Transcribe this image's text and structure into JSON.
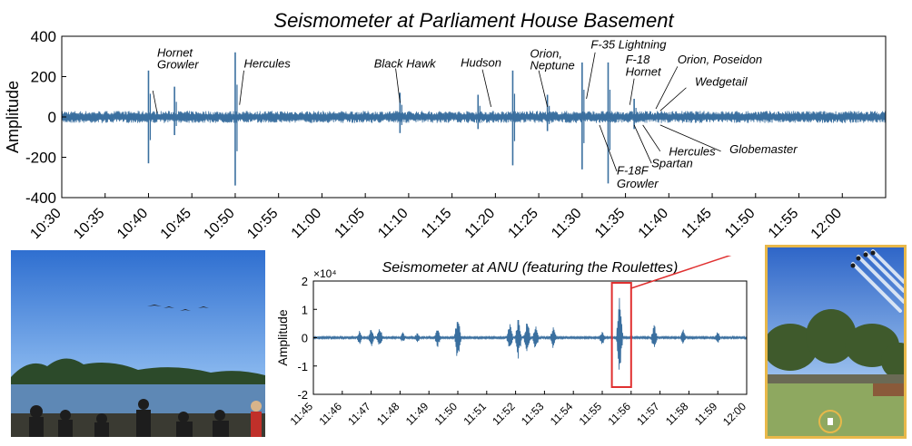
{
  "chart_data": [
    {
      "type": "line",
      "title": "Seismometer at Parliament House Basement",
      "ylabel": "Amplitude",
      "ylim": [
        -400,
        400
      ],
      "yticks": [
        400,
        200,
        0,
        -200,
        -400
      ],
      "xrange": [
        "10:30",
        "12:05"
      ],
      "xticks": [
        "10:30",
        "10:35",
        "10:40",
        "10:45",
        "10:50",
        "10:55",
        "11:00",
        "11:05",
        "11:10",
        "11:15",
        "11:20",
        "11:25",
        "11:30",
        "11:35",
        "11:40",
        "11:45",
        "11:50",
        "11:55",
        "12:00"
      ],
      "color": "#3a6f9f",
      "noise_amplitude": 30,
      "spikes": [
        {
          "t": "10:40",
          "up": 230,
          "down": -230
        },
        {
          "t": "10:43",
          "up": 150,
          "down": -90
        },
        {
          "t": "10:50",
          "up": 320,
          "down": -340
        },
        {
          "t": "11:09",
          "up": 120,
          "down": -80
        },
        {
          "t": "11:18",
          "up": 110,
          "down": -60
        },
        {
          "t": "11:22",
          "up": 230,
          "down": -240
        },
        {
          "t": "11:26",
          "up": 110,
          "down": -70
        },
        {
          "t": "11:30",
          "up": 270,
          "down": -260
        },
        {
          "t": "11:33",
          "up": 270,
          "down": -330
        },
        {
          "t": "11:36",
          "up": 90,
          "down": -60
        }
      ],
      "annotations": [
        {
          "text": "Hornet",
          "t": "10:41",
          "y": 300
        },
        {
          "text": "Growler",
          "t": "10:41",
          "y": 240
        },
        {
          "text": "Hercules",
          "t": "10:51",
          "y": 245
        },
        {
          "text": "Black Hawk",
          "t": "11:06",
          "y": 245
        },
        {
          "text": "Hudson",
          "t": "11:16",
          "y": 250
        },
        {
          "text": "Orion,",
          "t": "11:24",
          "y": 295
        },
        {
          "text": "Neptune",
          "t": "11:24",
          "y": 235
        },
        {
          "text": "F-35 Lightning",
          "t": "11:31",
          "y": 340
        },
        {
          "text": "F-18",
          "t": "11:35",
          "y": 265
        },
        {
          "text": "Hornet",
          "t": "11:35",
          "y": 205
        },
        {
          "text": "Orion, Poseidon",
          "t": "11:41",
          "y": 265
        },
        {
          "text": "Wedgetail",
          "t": "11:43",
          "y": 155
        },
        {
          "text": "Hercules",
          "t": "11:40",
          "y": -190
        },
        {
          "text": "Spartan",
          "t": "11:38",
          "y": -250
        },
        {
          "text": "Globemaster",
          "t": "11:47",
          "y": -180
        },
        {
          "text": "F-18F",
          "t": "11:34",
          "y": -285
        },
        {
          "text": "Growler",
          "t": "11:34",
          "y": -350
        }
      ]
    },
    {
      "type": "line",
      "title": "Seismometer at ANU (featuring the Roulettes)",
      "ylabel": "Amplitude",
      "exponent_label": "×10⁴",
      "ylim": [
        -2,
        2
      ],
      "yticks": [
        2,
        1,
        0,
        -1,
        -2
      ],
      "xrange": [
        "11:45",
        "12:00"
      ],
      "xticks": [
        "11:45",
        "11:46",
        "11:47",
        "11:48",
        "11:49",
        "11:50",
        "11:51",
        "11:52",
        "11:53",
        "11:54",
        "11:55",
        "11:56",
        "11:57",
        "11:58",
        "11:59",
        "12:00"
      ],
      "color": "#3a6f9f",
      "highlight_color": "#e03030",
      "highlight_range": [
        "11:55:20",
        "11:56:00"
      ],
      "noise_amplitude": 0.03,
      "bursts": [
        {
          "t": 46.6,
          "amp": 0.25
        },
        {
          "t": 47.0,
          "amp": 0.35
        },
        {
          "t": 47.3,
          "amp": 0.4
        },
        {
          "t": 48.1,
          "amp": 0.2
        },
        {
          "t": 48.6,
          "amp": 0.2
        },
        {
          "t": 49.3,
          "amp": 0.35
        },
        {
          "t": 50.0,
          "amp": 1.05
        },
        {
          "t": 51.8,
          "amp": 0.55
        },
        {
          "t": 52.1,
          "amp": 0.8
        },
        {
          "t": 52.4,
          "amp": 0.7
        },
        {
          "t": 52.7,
          "amp": 0.5
        },
        {
          "t": 53.3,
          "amp": 0.4
        },
        {
          "t": 55.0,
          "amp": 0.3
        },
        {
          "t": 55.6,
          "amp": 1.5
        },
        {
          "t": 56.8,
          "amp": 0.5
        },
        {
          "t": 57.8,
          "amp": 0.3
        },
        {
          "t": 59.0,
          "amp": 0.25
        }
      ]
    }
  ]
}
